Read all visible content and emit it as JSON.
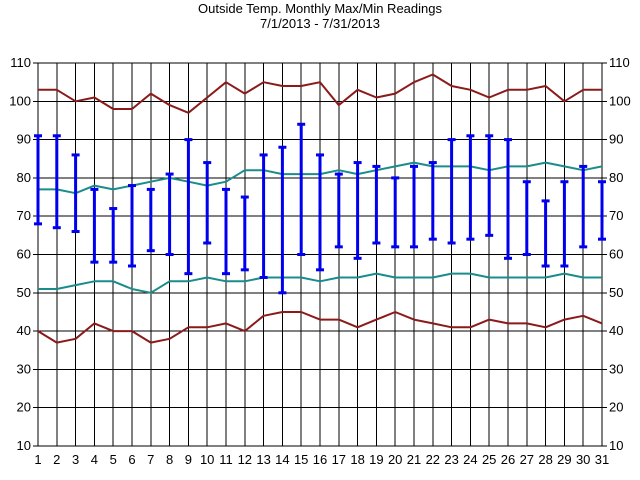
{
  "chart_data": {
    "type": "line",
    "title": "Outside Temp. Monthly Max/Min Readings",
    "subtitle": "7/1/2013 - 7/31/2013",
    "xlabel": "",
    "ylabel": "",
    "x": [
      1,
      2,
      3,
      4,
      5,
      6,
      7,
      8,
      9,
      10,
      11,
      12,
      13,
      14,
      15,
      16,
      17,
      18,
      19,
      20,
      21,
      22,
      23,
      24,
      25,
      26,
      27,
      28,
      29,
      30,
      31
    ],
    "ylim": [
      10,
      110
    ],
    "yticks": [
      10,
      20,
      30,
      40,
      50,
      60,
      70,
      80,
      90,
      100,
      110
    ],
    "grid": true,
    "colors": {
      "record": "#8b1a1a",
      "normal": "#1a8c8c",
      "daily": "#0000ee",
      "grid": "#000000"
    },
    "series": [
      {
        "role": "record_high",
        "values": [
          103,
          103,
          100,
          101,
          98,
          98,
          102,
          99,
          97,
          101,
          105,
          102,
          105,
          104,
          104,
          105,
          99,
          103,
          101,
          102,
          105,
          107,
          104,
          103,
          101,
          103,
          103,
          104,
          100,
          103,
          103
        ]
      },
      {
        "role": "normal_high",
        "values": [
          77,
          77,
          76,
          78,
          77,
          78,
          79,
          80,
          79,
          78,
          79,
          82,
          82,
          81,
          81,
          81,
          82,
          81,
          82,
          83,
          84,
          83,
          83,
          83,
          82,
          83,
          83,
          84,
          83,
          82,
          83
        ]
      },
      {
        "role": "normal_low",
        "values": [
          51,
          51,
          52,
          53,
          53,
          51,
          50,
          53,
          53,
          54,
          53,
          53,
          54,
          54,
          54,
          53,
          54,
          54,
          55,
          54,
          54,
          54,
          55,
          55,
          54,
          54,
          54,
          54,
          55,
          54,
          54
        ]
      },
      {
        "role": "record_low",
        "values": [
          40,
          37,
          38,
          42,
          40,
          40,
          37,
          38,
          41,
          41,
          42,
          40,
          44,
          45,
          45,
          43,
          43,
          41,
          43,
          45,
          43,
          42,
          41,
          41,
          43,
          42,
          42,
          41,
          43,
          44,
          42
        ]
      },
      {
        "role": "daily_max",
        "values": [
          91,
          91,
          86,
          77,
          72,
          78,
          77,
          81,
          90,
          84,
          77,
          75,
          86,
          88,
          94,
          86,
          81,
          84,
          83,
          80,
          83,
          84,
          90,
          91,
          91,
          90,
          79,
          74,
          79,
          83,
          79
        ]
      },
      {
        "role": "daily_min",
        "values": [
          68,
          67,
          66,
          58,
          58,
          57,
          61,
          60,
          55,
          63,
          55,
          56,
          54,
          50,
          60,
          56,
          62,
          59,
          63,
          62,
          62,
          64,
          63,
          64,
          65,
          59,
          60,
          57,
          57,
          62,
          64
        ]
      }
    ]
  }
}
